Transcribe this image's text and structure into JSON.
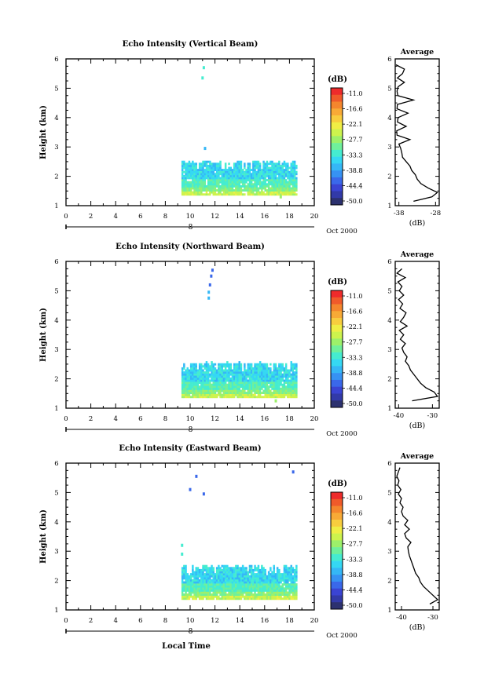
{
  "shared": {
    "date_label": "Oct 2000",
    "day_label": "8",
    "xlabel": "Local Time",
    "ylabel": "Height (km)",
    "colorbar_title": "(dB)",
    "colorbar_levels": [
      "-11.0",
      "-16.6",
      "-22.1",
      "-27.7",
      "-33.3",
      "-38.8",
      "-44.4",
      "-50.0"
    ],
    "colorbar_colors": [
      "#ee2b2b",
      "#f05a2a",
      "#f5862d",
      "#f8aa36",
      "#f8cd3e",
      "#f0ee45",
      "#cdf34d",
      "#9df06a",
      "#6ff09b",
      "#45ecd0",
      "#35d8f3",
      "#35b7f6",
      "#3692f3",
      "#3a68ea",
      "#3a44d3",
      "#323aa8",
      "#2c316f"
    ],
    "avg_title": "Average",
    "avg_xlabel": "(dB)"
  },
  "chart_data": [
    {
      "type": "heatmap",
      "title": "Echo Intensity (Vertical Beam)",
      "xlim": [
        0,
        20
      ],
      "ylim": [
        1,
        6
      ],
      "xticks": [
        0,
        2,
        4,
        6,
        8,
        10,
        12,
        14,
        16,
        18,
        20
      ],
      "yticks": [
        1,
        2,
        3,
        4,
        5,
        6
      ],
      "echo_region": {
        "x_start": 9.3,
        "x_end": 18.5,
        "y_bottom": 1.35,
        "y_top": 2.5
      },
      "isolated_echoes": [
        {
          "x": 11.1,
          "y": 5.7,
          "value": -33.3
        },
        {
          "x": 11.0,
          "y": 5.35,
          "value": -33.3
        },
        {
          "x": 11.2,
          "y": 2.95,
          "value": -38.8
        },
        {
          "x": 17.3,
          "y": 1.3,
          "value": -27.7
        }
      ],
      "average": {
        "xticks": [
          -38,
          -28
        ],
        "xtick_labels": [
          "-38",
          "-28"
        ],
        "xlim": [
          -39,
          -27
        ],
        "height": [
          1.15,
          1.3,
          1.45,
          1.6,
          1.75,
          1.9,
          2.05,
          2.2,
          2.35,
          2.5,
          2.65,
          2.8,
          2.95,
          3.1,
          3.25,
          3.4,
          3.55,
          3.7,
          3.85,
          4.0,
          4.15,
          4.3,
          4.45,
          4.6,
          4.75,
          4.9,
          5.05,
          5.2,
          5.35,
          5.5,
          5.65,
          5.8
        ],
        "value": [
          -34,
          -29,
          -27.5,
          -30,
          -32,
          -33,
          -33.5,
          -34.5,
          -35,
          -36,
          -37,
          -37.2,
          -37.5,
          -38,
          -35,
          -38.5,
          -38.6,
          -36,
          -38.4,
          -38.2,
          -35.5,
          -38.5,
          -38.4,
          -34,
          -38.3,
          -38.5,
          -38.2,
          -36.5,
          -38.4,
          -37,
          -36.5,
          -38.8
        ]
      }
    },
    {
      "type": "heatmap",
      "title": "Echo Intensity (Northward Beam)",
      "xlim": [
        0,
        20
      ],
      "ylim": [
        1,
        6
      ],
      "xticks": [
        0,
        2,
        4,
        6,
        8,
        10,
        12,
        14,
        16,
        18,
        20
      ],
      "yticks": [
        1,
        2,
        3,
        4,
        5,
        6
      ],
      "echo_region": {
        "x_start": 9.3,
        "x_end": 18.5,
        "y_bottom": 1.35,
        "y_top": 2.55
      },
      "isolated_echoes": [
        {
          "x": 11.8,
          "y": 5.7,
          "value": -44.4
        },
        {
          "x": 11.7,
          "y": 5.5,
          "value": -44.4
        },
        {
          "x": 11.6,
          "y": 5.2,
          "value": -44.4
        },
        {
          "x": 11.5,
          "y": 4.95,
          "value": -38.8
        },
        {
          "x": 11.5,
          "y": 4.75,
          "value": -38.8
        },
        {
          "x": 16.9,
          "y": 1.25,
          "value": -27.7
        }
      ],
      "average": {
        "xticks": [
          -40,
          -30
        ],
        "xtick_labels": [
          "-40",
          "-30"
        ],
        "xlim": [
          -41,
          -28
        ],
        "height": [
          1.25,
          1.4,
          1.55,
          1.7,
          1.85,
          2.0,
          2.15,
          2.3,
          2.45,
          2.6,
          2.75,
          2.9,
          3.05,
          3.2,
          3.35,
          3.5,
          3.65,
          3.8,
          3.95,
          4.1,
          4.25,
          4.4,
          4.55,
          4.7,
          4.85,
          5.0,
          5.15,
          5.3,
          5.45,
          5.6,
          5.75
        ],
        "value": [
          -36,
          -28.5,
          -29.5,
          -32,
          -33.5,
          -34.5,
          -35.5,
          -36.5,
          -37,
          -38,
          -37.5,
          -38.5,
          -39,
          -38,
          -39.5,
          -38.5,
          -39.8,
          -37.5,
          -39.5,
          -38.5,
          -37.8,
          -39.6,
          -38.8,
          -40,
          -38.5,
          -39.8,
          -39,
          -40.2,
          -38,
          -40.5,
          -39
        ]
      }
    },
    {
      "type": "heatmap",
      "title": "Echo Intensity (Eastward Beam)",
      "xlim": [
        0,
        20
      ],
      "ylim": [
        1,
        6
      ],
      "xticks": [
        0,
        2,
        4,
        6,
        8,
        10,
        12,
        14,
        16,
        18,
        20
      ],
      "yticks": [
        1,
        2,
        3,
        4,
        5,
        6
      ],
      "echo_region": {
        "x_start": 9.3,
        "x_end": 18.5,
        "y_bottom": 1.35,
        "y_top": 2.5
      },
      "isolated_echoes": [
        {
          "x": 10.5,
          "y": 5.55,
          "value": -44.4
        },
        {
          "x": 10.0,
          "y": 5.1,
          "value": -44.4
        },
        {
          "x": 11.1,
          "y": 4.95,
          "value": -44.4
        },
        {
          "x": 18.3,
          "y": 5.7,
          "value": -44.4
        },
        {
          "x": 9.35,
          "y": 3.2,
          "value": -33.3
        },
        {
          "x": 9.35,
          "y": 2.9,
          "value": -33.3
        }
      ],
      "average": {
        "xticks": [
          -40,
          -30
        ],
        "xtick_labels": [
          "-40",
          "-30"
        ],
        "xlim": [
          -42,
          -28
        ],
        "height": [
          1.2,
          1.35,
          1.5,
          1.65,
          1.8,
          1.95,
          2.1,
          2.25,
          2.4,
          2.55,
          2.7,
          2.85,
          3.0,
          3.15,
          3.3,
          3.45,
          3.6,
          3.75,
          3.9,
          4.05,
          4.2,
          4.35,
          4.5,
          4.65,
          4.8,
          4.95,
          5.1,
          5.25,
          5.4,
          5.55,
          5.7,
          5.85
        ],
        "value": [
          -31,
          -28.5,
          -30,
          -31.5,
          -33,
          -34,
          -34.5,
          -35.5,
          -36,
          -36.5,
          -37,
          -37.5,
          -37.8,
          -38,
          -37,
          -38.5,
          -39,
          -37.5,
          -39,
          -38,
          -39.5,
          -40,
          -39.5,
          -40.5,
          -40,
          -41,
          -40.2,
          -41.2,
          -40.8,
          -41.5,
          -41,
          -40.5
        ]
      }
    }
  ]
}
